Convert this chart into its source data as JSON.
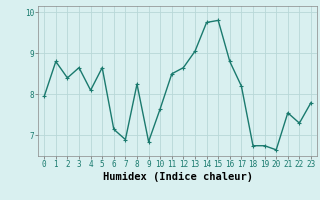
{
  "x": [
    0,
    1,
    2,
    3,
    4,
    5,
    6,
    7,
    8,
    9,
    10,
    11,
    12,
    13,
    14,
    15,
    16,
    17,
    18,
    19,
    20,
    21,
    22,
    23
  ],
  "y": [
    7.95,
    8.8,
    8.4,
    8.65,
    8.1,
    8.65,
    7.15,
    6.9,
    8.25,
    6.85,
    7.65,
    8.5,
    8.65,
    9.05,
    9.75,
    9.8,
    8.8,
    8.2,
    6.75,
    6.75,
    6.65,
    7.55,
    7.3,
    7.8
  ],
  "line_color": "#1a7a6e",
  "marker": "+",
  "marker_size": 3,
  "bg_color": "#d9f0f0",
  "grid_color": "#b8d8d8",
  "xlabel": "Humidex (Indice chaleur)",
  "ylim": [
    6.5,
    10.15
  ],
  "xlim": [
    -0.5,
    23.5
  ],
  "yticks": [
    7,
    8,
    9,
    10
  ],
  "xticks": [
    0,
    1,
    2,
    3,
    4,
    5,
    6,
    7,
    8,
    9,
    10,
    11,
    12,
    13,
    14,
    15,
    16,
    17,
    18,
    19,
    20,
    21,
    22,
    23
  ],
  "xtick_labels": [
    "0",
    "1",
    "2",
    "3",
    "4",
    "5",
    "6",
    "7",
    "8",
    "9",
    "10",
    "11",
    "12",
    "13",
    "14",
    "15",
    "16",
    "17",
    "18",
    "19",
    "20",
    "21",
    "22",
    "23"
  ],
  "line_width": 1.0,
  "tick_fontsize": 5.5,
  "xlabel_fontsize": 7.5,
  "xlabel_fontweight": "bold"
}
